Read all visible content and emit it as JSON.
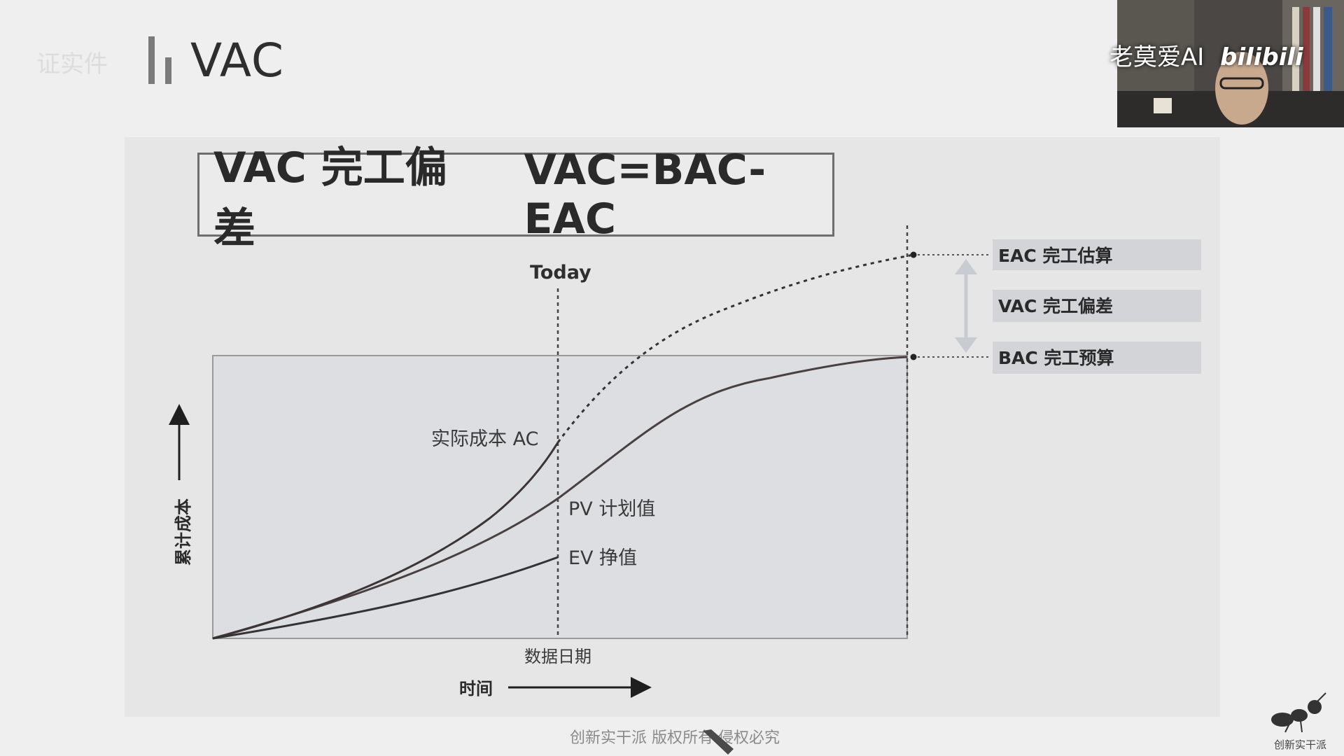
{
  "slide": {
    "faint_text": "证实件",
    "title": "VAC"
  },
  "formula": {
    "left": "VAC 完工偏差",
    "right": "VAC=BAC-EAC"
  },
  "diagram": {
    "today_label": "Today",
    "y_axis_label": "累计成本",
    "x_axis_label": "时间",
    "data_date_label": "数据日期",
    "ac_label": "实际成本 AC",
    "pv_label": "PV 计划值",
    "ev_label": "EV 挣值",
    "eac_label": "EAC 完工估算",
    "vac_label": "VAC 完工偏差",
    "bac_label": "BAC 完工预算"
  },
  "overlay": {
    "webcam_caption": "老莫爱AI",
    "webcam_brand": "bilibili",
    "logo_text": "创新实干派",
    "copyright": "创新实干派  版权所有  侵权必究"
  }
}
